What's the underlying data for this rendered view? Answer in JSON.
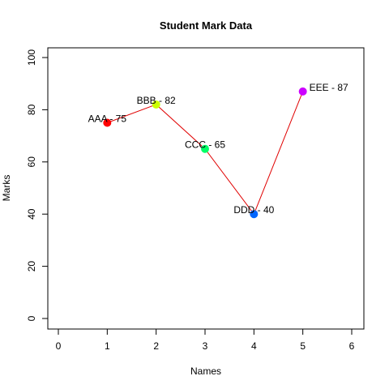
{
  "chart_data": {
    "type": "line",
    "title": "Student Mark Data",
    "xlabel": "Names",
    "ylabel": "Marks",
    "xlim": [
      0,
      6
    ],
    "ylim": [
      0,
      100
    ],
    "x_ticks": [
      0,
      1,
      2,
      3,
      4,
      5,
      6
    ],
    "y_ticks": [
      0,
      20,
      40,
      60,
      80,
      100
    ],
    "line_color": "#e00000",
    "points": [
      {
        "x": 1,
        "y": 75,
        "label": "AAA - 75",
        "color": "#ff0000"
      },
      {
        "x": 2,
        "y": 82,
        "label": "BBB - 82",
        "color": "#ccff00"
      },
      {
        "x": 3,
        "y": 65,
        "label": "CCC - 65",
        "color": "#00ff66"
      },
      {
        "x": 4,
        "y": 40,
        "label": "DDD - 40",
        "color": "#0066ff"
      },
      {
        "x": 5,
        "y": 87,
        "label": "EEE - 87",
        "color": "#cc00ff"
      }
    ],
    "grid": false,
    "legend": false
  }
}
